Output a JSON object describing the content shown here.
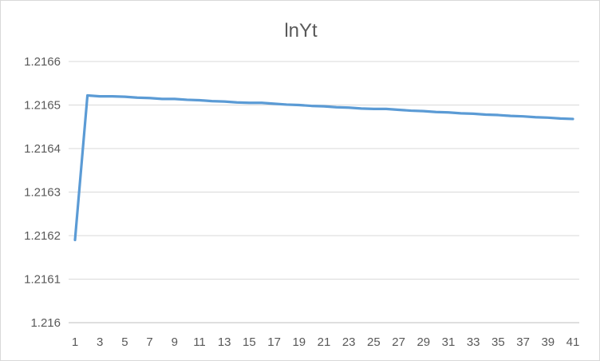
{
  "chart_data": {
    "type": "line",
    "title": "lnYt",
    "xlabel": "",
    "ylabel": "",
    "x": [
      1,
      2,
      3,
      4,
      5,
      6,
      7,
      8,
      9,
      10,
      11,
      12,
      13,
      14,
      15,
      16,
      17,
      18,
      19,
      20,
      21,
      22,
      23,
      24,
      25,
      26,
      27,
      28,
      29,
      30,
      31,
      32,
      33,
      34,
      35,
      36,
      37,
      38,
      39,
      40,
      41
    ],
    "x_tick_labels": [
      "1",
      "3",
      "5",
      "7",
      "9",
      "11",
      "13",
      "15",
      "17",
      "19",
      "21",
      "23",
      "25",
      "27",
      "29",
      "31",
      "33",
      "35",
      "37",
      "39",
      "41"
    ],
    "y_tick_labels": [
      "1.216",
      "1.2161",
      "1.2162",
      "1.2163",
      "1.2164",
      "1.2165",
      "1.2166"
    ],
    "ylim": [
      1.216,
      1.2166
    ],
    "grid": true,
    "legend": "none",
    "series": [
      {
        "color": "#5b9bd5",
        "values": [
          1.21619,
          1.216522,
          1.21652,
          1.21652,
          1.216519,
          1.216517,
          1.216516,
          1.216514,
          1.216514,
          1.216512,
          1.216511,
          1.216509,
          1.216508,
          1.216506,
          1.216505,
          1.216505,
          1.216503,
          1.216501,
          1.2165,
          1.216498,
          1.216497,
          1.216495,
          1.216494,
          1.216492,
          1.216491,
          1.216491,
          1.216489,
          1.216487,
          1.216486,
          1.216484,
          1.216483,
          1.216481,
          1.21648,
          1.216478,
          1.216477,
          1.216475,
          1.216474,
          1.216472,
          1.216471,
          1.216469,
          1.216468
        ]
      }
    ],
    "colors": {
      "gridline": "#d9d9d9",
      "axis": "#bfbfbf",
      "text": "#595959"
    }
  }
}
